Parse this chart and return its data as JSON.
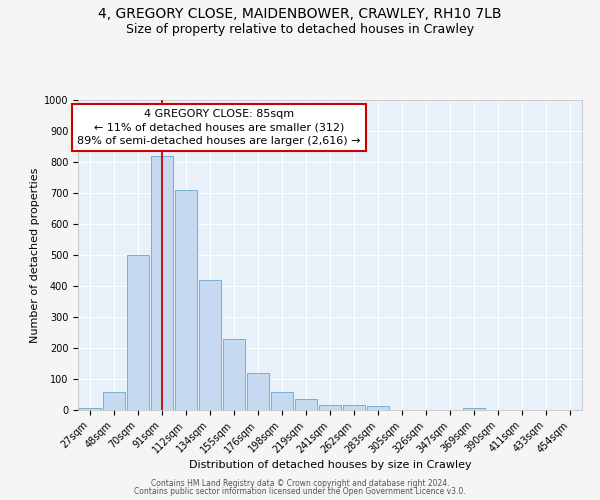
{
  "title_line1": "4, GREGORY CLOSE, MAIDENBOWER, CRAWLEY, RH10 7LB",
  "title_line2": "Size of property relative to detached houses in Crawley",
  "xlabel": "Distribution of detached houses by size in Crawley",
  "ylabel": "Number of detached properties",
  "categories": [
    "27sqm",
    "48sqm",
    "70sqm",
    "91sqm",
    "112sqm",
    "134sqm",
    "155sqm",
    "176sqm",
    "198sqm",
    "219sqm",
    "241sqm",
    "262sqm",
    "283sqm",
    "305sqm",
    "326sqm",
    "347sqm",
    "369sqm",
    "390sqm",
    "411sqm",
    "433sqm",
    "454sqm"
  ],
  "values": [
    8,
    57,
    500,
    820,
    710,
    420,
    230,
    118,
    57,
    35,
    15,
    15,
    12,
    0,
    0,
    0,
    8,
    0,
    0,
    0,
    0
  ],
  "bar_color": "#c5d9f0",
  "bar_edge_color": "#7aadd4",
  "plot_bg_color": "#e8f0fa",
  "grid_color": "#ffffff",
  "fig_bg_color": "#f5f5f5",
  "vline_color": "#cc0000",
  "vline_x": 3.0,
  "annotation_text": "4 GREGORY CLOSE: 85sqm\n← 11% of detached houses are smaller (312)\n89% of semi-detached houses are larger (2,616) →",
  "annotation_box_facecolor": "#ffffff",
  "annotation_box_edgecolor": "#cc0000",
  "ylim": [
    0,
    1000
  ],
  "yticks": [
    0,
    100,
    200,
    300,
    400,
    500,
    600,
    700,
    800,
    900,
    1000
  ],
  "title1_fontsize": 10,
  "title2_fontsize": 9,
  "axis_label_fontsize": 8,
  "tick_fontsize": 7,
  "annot_fontsize": 8,
  "footer_line1": "Contains HM Land Registry data © Crown copyright and database right 2024.",
  "footer_line2": "Contains public sector information licensed under the Open Government Licence v3.0."
}
